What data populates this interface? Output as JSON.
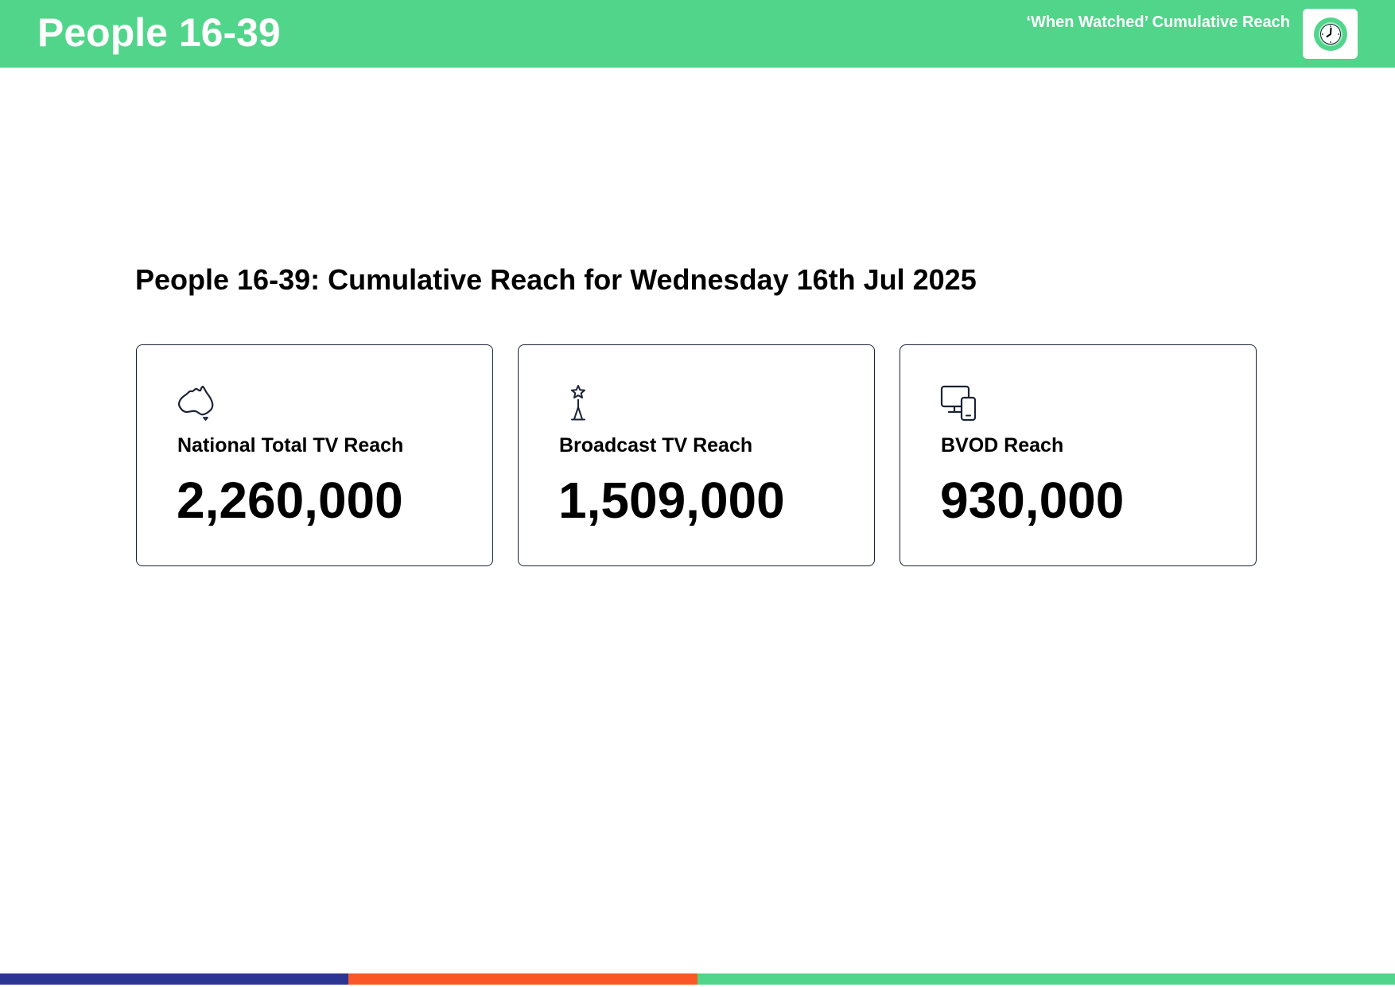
{
  "header": {
    "title": "People 16-39",
    "subtitle": "‘When Watched’ Cumulative Reach",
    "badge_icon": "clock-icon"
  },
  "main": {
    "title": "People 16-39: Cumulative Reach for Wednesday 16th Jul 2025",
    "cards": [
      {
        "icon": "australia-map-icon",
        "label": "National Total TV Reach",
        "value": "2,260,000"
      },
      {
        "icon": "broadcast-tower-icon",
        "label": "Broadcast TV Reach",
        "value": "1,509,000"
      },
      {
        "icon": "devices-icon",
        "label": "BVOD Reach",
        "value": "930,000"
      }
    ]
  },
  "colors": {
    "header_green": "#51d58a",
    "footer_navy": "#2c3592",
    "footer_orange": "#fb5626",
    "footer_green": "#51d58a",
    "card_border": "#1b2337"
  }
}
